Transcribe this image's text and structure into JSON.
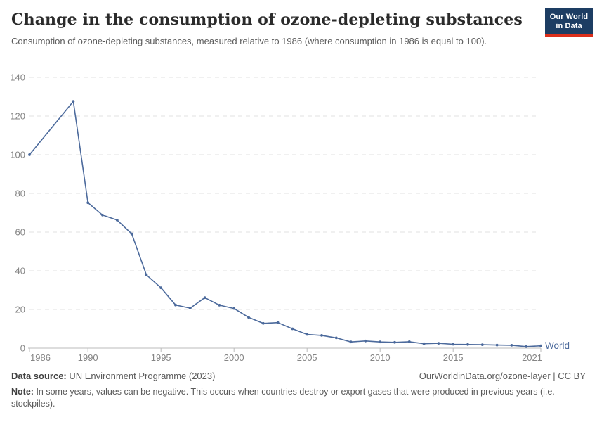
{
  "header": {
    "logo": {
      "line1": "Our World",
      "line2": "in Data"
    }
  },
  "footer": {
    "datasource_label": "Data source:",
    "datasource_value": "UN Environment Programme (2023)",
    "link_text": "OurWorldinData.org/ozone-layer",
    "separator": " | ",
    "license": "CC BY",
    "note_label": "Note:",
    "note_text": "In some years, values can be negative. This occurs when countries destroy or export gases that were produced in previous years (i.e. stockpiles)."
  },
  "colors": {
    "line": "#4c6a9c",
    "series_label": "#4c6a9c",
    "tick_label": "#858585",
    "axis_line": "#bbbbbb",
    "gridline": "#e0e0e0",
    "logo_bg": "#1d3d63",
    "logo_bar": "#dc2f1b"
  },
  "chart_data": {
    "type": "line",
    "title": "Change in the consumption of ozone-depleting substances",
    "subtitle": "Consumption of ozone-depleting substances, measured relative to 1986 (where consumption in 1986 is equal to 100).",
    "xlabel": "",
    "ylabel": "",
    "xlim": [
      1986,
      2021
    ],
    "ylim": [
      0,
      140
    ],
    "x_ticks": [
      1986,
      1990,
      1995,
      2000,
      2005,
      2010,
      2015,
      2021
    ],
    "y_ticks": [
      0,
      20,
      40,
      60,
      80,
      100,
      120,
      140
    ],
    "grid": "horizontal-dashed",
    "legend_position": "end-of-line",
    "series": [
      {
        "name": "World",
        "x": [
          1986,
          1989,
          1990,
          1991,
          1992,
          1993,
          1994,
          1995,
          1996,
          1997,
          1998,
          1999,
          2000,
          2001,
          2002,
          2003,
          2004,
          2005,
          2006,
          2007,
          2008,
          2009,
          2010,
          2011,
          2012,
          2013,
          2014,
          2015,
          2016,
          2017,
          2018,
          2019,
          2020,
          2021
        ],
        "y": [
          100,
          127.6,
          75.2,
          68.8,
          66.2,
          59.1,
          37.9,
          31.2,
          22.3,
          20.7,
          26.1,
          22.2,
          20.5,
          15.9,
          12.8,
          13.2,
          10.0,
          7.1,
          6.6,
          5.3,
          3.2,
          3.7,
          3.2,
          3.0,
          3.3,
          2.3,
          2.5,
          2.0,
          1.9,
          1.8,
          1.6,
          1.5,
          0.8,
          1.2
        ]
      }
    ]
  }
}
